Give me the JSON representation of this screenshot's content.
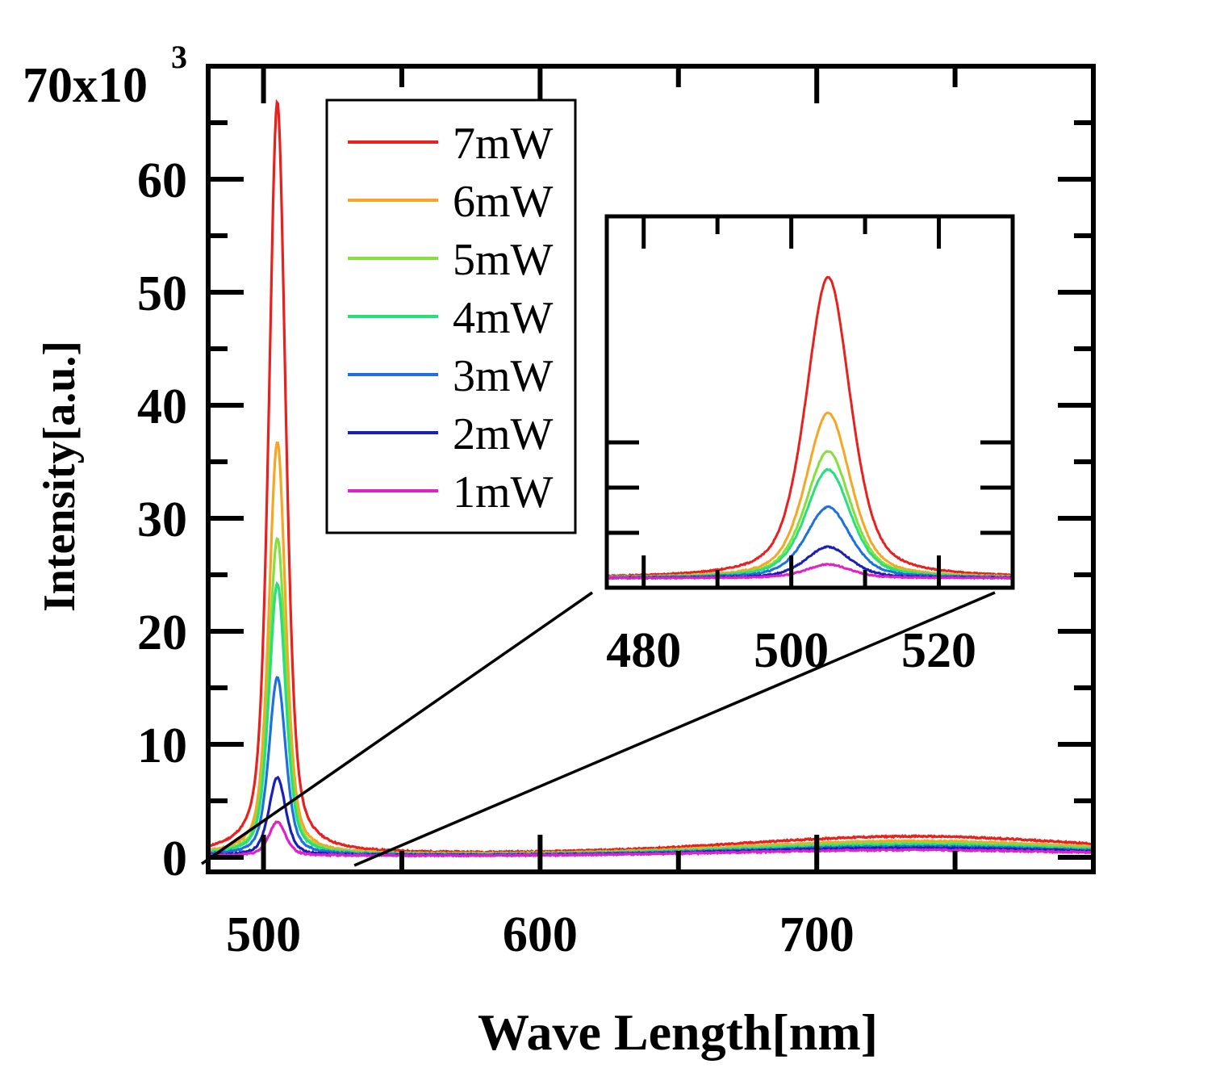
{
  "chart_data": {
    "type": "line",
    "xlabel": "Wave Length[nm]",
    "ylabel": "Intensity[a.u.]",
    "xlim": [
      480,
      800
    ],
    "ylim": [
      0,
      70000
    ],
    "x_ticks": [
      "500",
      "600",
      "700"
    ],
    "y_ticks": [
      "0",
      "10",
      "20",
      "30",
      "40",
      "50",
      "60"
    ],
    "y_top_label": {
      "base": "70x10",
      "exp": "3"
    },
    "grid": false,
    "legend_position": "top-left",
    "series": [
      {
        "name": "7mW",
        "color": "#e8201e",
        "peak_x": 505,
        "peak_y": 66500,
        "width": 3.6,
        "baseline": 350,
        "far_peak_y": 1500
      },
      {
        "name": "6mW",
        "color": "#f5a623",
        "peak_x": 505,
        "peak_y": 36500,
        "width": 3.6,
        "baseline": 280,
        "far_peak_y": 1150
      },
      {
        "name": "5mW",
        "color": "#84e03a",
        "peak_x": 505,
        "peak_y": 28000,
        "width": 3.6,
        "baseline": 250,
        "far_peak_y": 1000
      },
      {
        "name": "4mW",
        "color": "#26e07a",
        "peak_x": 505,
        "peak_y": 24000,
        "width": 3.6,
        "baseline": 230,
        "far_peak_y": 900
      },
      {
        "name": "3mW",
        "color": "#1e6fe0",
        "peak_x": 505,
        "peak_y": 15700,
        "width": 3.6,
        "baseline": 200,
        "far_peak_y": 750
      },
      {
        "name": "2mW",
        "color": "#1a1fb8",
        "peak_x": 505,
        "peak_y": 6900,
        "width": 3.6,
        "baseline": 170,
        "far_peak_y": 650
      },
      {
        "name": "1mW",
        "color": "#e020c8",
        "peak_x": 505,
        "peak_y": 3000,
        "width": 3.6,
        "baseline": 150,
        "far_peak_y": 500
      }
    ],
    "inset": {
      "xlim": [
        475,
        530
      ],
      "ylim": [
        0,
        8000
      ],
      "x_ticks": [
        "480",
        "500",
        "520"
      ],
      "zoom_source": {
        "x": [
          480,
          534
        ],
        "y": [
          0,
          7000
        ]
      }
    }
  }
}
